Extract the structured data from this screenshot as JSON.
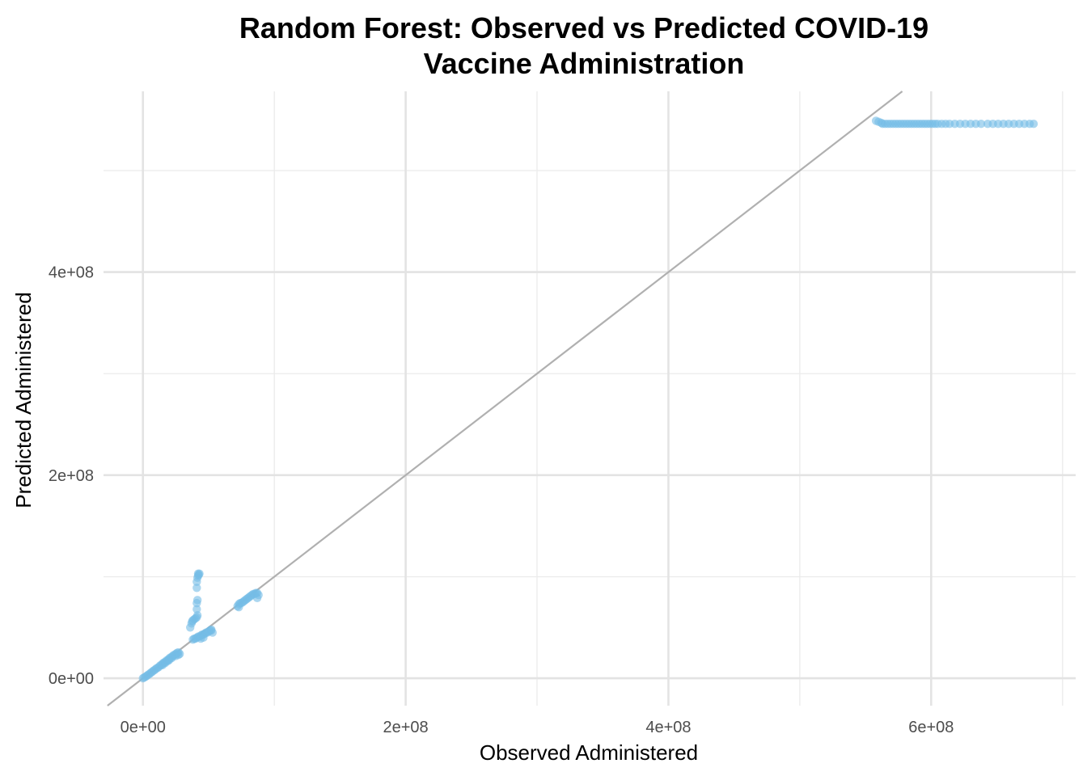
{
  "chart_data": {
    "type": "scatter",
    "title_lines": [
      "Random Forest: Observed vs Predicted COVID-19",
      "Vaccine Administration"
    ],
    "xlabel": "Observed Administered",
    "ylabel": "Predicted Administered",
    "xlim": [
      -30000000,
      710000000
    ],
    "ylim": [
      -27000000,
      578000000
    ],
    "x_ticks": [
      {
        "value": 0,
        "label": "0e+00"
      },
      {
        "value": 200000000,
        "label": "2e+08"
      },
      {
        "value": 400000000,
        "label": "4e+08"
      },
      {
        "value": 600000000,
        "label": "6e+08"
      }
    ],
    "y_ticks": [
      {
        "value": 0,
        "label": "0e+00"
      },
      {
        "value": 200000000,
        "label": "2e+08"
      },
      {
        "value": 400000000,
        "label": "4e+08"
      }
    ],
    "x_minor_ticks": [
      100000000,
      300000000,
      500000000,
      700000000
    ],
    "y_minor_ticks": [
      100000000,
      300000000,
      500000000
    ],
    "grid": true,
    "reference_line": {
      "slope": 1,
      "intercept": 0,
      "color": "#b0b0b0"
    },
    "point_color": "#74bde6",
    "point_opacity": 0.6,
    "points": [
      [
        0,
        0
      ],
      [
        1000000,
        800000
      ],
      [
        2000000,
        1500000
      ],
      [
        3000000,
        2500000
      ],
      [
        4000000,
        3500000
      ],
      [
        5000000,
        4200000
      ],
      [
        6000000,
        5500000
      ],
      [
        7000000,
        6300000
      ],
      [
        8000000,
        7500000
      ],
      [
        9000000,
        8200000
      ],
      [
        10000000,
        9500000
      ],
      [
        11000000,
        10200000
      ],
      [
        12000000,
        11000000
      ],
      [
        13000000,
        12500000
      ],
      [
        14000000,
        13000000
      ],
      [
        15000000,
        14500000
      ],
      [
        16000000,
        15500000
      ],
      [
        17000000,
        16000000
      ],
      [
        18000000,
        17500000
      ],
      [
        19000000,
        18000000
      ],
      [
        20000000,
        19500000
      ],
      [
        21000000,
        20500000
      ],
      [
        22000000,
        21000000
      ],
      [
        23000000,
        22500000
      ],
      [
        24000000,
        23000000
      ],
      [
        25000000,
        24000000
      ],
      [
        26000000,
        25000000
      ],
      [
        27000000,
        25500000
      ],
      [
        28000000,
        24000000
      ],
      [
        15000000,
        13000000
      ],
      [
        17000000,
        15000000
      ],
      [
        19000000,
        17000000
      ],
      [
        20000000,
        18000000
      ],
      [
        22000000,
        20000000
      ],
      [
        25000000,
        22000000
      ],
      [
        27000000,
        23000000
      ],
      [
        36000000,
        50000000
      ],
      [
        37000000,
        54000000
      ],
      [
        37500000,
        56000000
      ],
      [
        38000000,
        57000000
      ],
      [
        39000000,
        58000000
      ],
      [
        40000000,
        59000000
      ],
      [
        41000000,
        60000000
      ],
      [
        41500000,
        62000000
      ],
      [
        41000000,
        68000000
      ],
      [
        41000000,
        74000000
      ],
      [
        41500000,
        77000000
      ],
      [
        41000000,
        89000000
      ],
      [
        41000000,
        95000000
      ],
      [
        41500000,
        99000000
      ],
      [
        42000000,
        101000000
      ],
      [
        42500000,
        102000000
      ],
      [
        43000000,
        103000000
      ],
      [
        42000000,
        103000000
      ],
      [
        38000000,
        38000000
      ],
      [
        39000000,
        39000000
      ],
      [
        40000000,
        39000000
      ],
      [
        41000000,
        40000000
      ],
      [
        42000000,
        41000000
      ],
      [
        43000000,
        41000000
      ],
      [
        44000000,
        42000000
      ],
      [
        45000000,
        43000000
      ],
      [
        46000000,
        43000000
      ],
      [
        47000000,
        44000000
      ],
      [
        48000000,
        45000000
      ],
      [
        49000000,
        45000000
      ],
      [
        50000000,
        46000000
      ],
      [
        51000000,
        47000000
      ],
      [
        52000000,
        47000000
      ],
      [
        53000000,
        45000000
      ],
      [
        46000000,
        40000000
      ],
      [
        44000000,
        39000000
      ],
      [
        52000000,
        48000000
      ],
      [
        72000000,
        71000000
      ],
      [
        73000000,
        73000000
      ],
      [
        74000000,
        74000000
      ],
      [
        75000000,
        74000000
      ],
      [
        76000000,
        75000000
      ],
      [
        77000000,
        76000000
      ],
      [
        78000000,
        77000000
      ],
      [
        79000000,
        78000000
      ],
      [
        80000000,
        79000000
      ],
      [
        81000000,
        80000000
      ],
      [
        82000000,
        81000000
      ],
      [
        83000000,
        82000000
      ],
      [
        84000000,
        83000000
      ],
      [
        85000000,
        83000000
      ],
      [
        86000000,
        84000000
      ],
      [
        87000000,
        84000000
      ],
      [
        88000000,
        82000000
      ],
      [
        87000000,
        79000000
      ],
      [
        73000000,
        70000000
      ],
      [
        558000000,
        549000000
      ],
      [
        560000000,
        548000000
      ],
      [
        562000000,
        547000000
      ],
      [
        563000000,
        546000000
      ],
      [
        565000000,
        546000000
      ],
      [
        567000000,
        546000000
      ],
      [
        569000000,
        546000000
      ],
      [
        571000000,
        546000000
      ],
      [
        573000000,
        546000000
      ],
      [
        575000000,
        546000000
      ],
      [
        577000000,
        546000000
      ],
      [
        579000000,
        546000000
      ],
      [
        581000000,
        546000000
      ],
      [
        583000000,
        546000000
      ],
      [
        585000000,
        546000000
      ],
      [
        587000000,
        546000000
      ],
      [
        589000000,
        546000000
      ],
      [
        591000000,
        546000000
      ],
      [
        593000000,
        546000000
      ],
      [
        595000000,
        546000000
      ],
      [
        597000000,
        546000000
      ],
      [
        599000000,
        546000000
      ],
      [
        601000000,
        546000000
      ],
      [
        603000000,
        546000000
      ],
      [
        605000000,
        546000000
      ],
      [
        608000000,
        546000000
      ],
      [
        611000000,
        546000000
      ],
      [
        614000000,
        546000000
      ],
      [
        618000000,
        546000000
      ],
      [
        622000000,
        546000000
      ],
      [
        626000000,
        546000000
      ],
      [
        630000000,
        546000000
      ],
      [
        634000000,
        546000000
      ],
      [
        638000000,
        546000000
      ],
      [
        643000000,
        546000000
      ],
      [
        647000000,
        546000000
      ],
      [
        651000000,
        546000000
      ],
      [
        655000000,
        546000000
      ],
      [
        659000000,
        546000000
      ],
      [
        663000000,
        546000000
      ],
      [
        667000000,
        546000000
      ],
      [
        671000000,
        546000000
      ],
      [
        675000000,
        546000000
      ],
      [
        678000000,
        546000000
      ]
    ]
  }
}
